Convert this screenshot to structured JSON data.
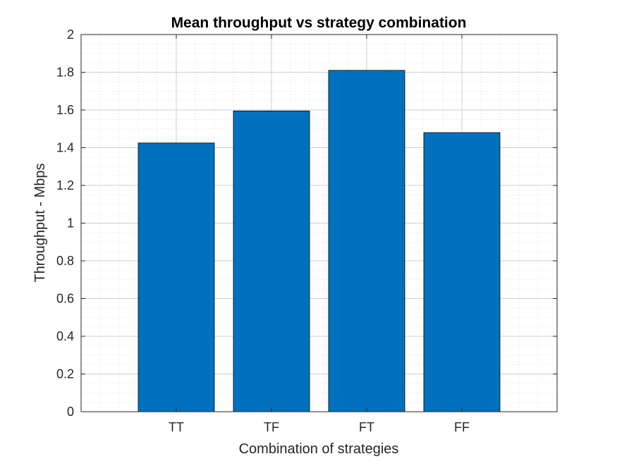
{
  "chart_data": {
    "type": "bar",
    "title": "Mean throughput vs strategy combination",
    "xlabel": "Combination of strategies",
    "ylabel": "Throughput - Mbps",
    "categories": [
      "TT",
      "TF",
      "FT",
      "FF"
    ],
    "values": [
      1.425,
      1.595,
      1.81,
      1.48
    ],
    "ylim": [
      0,
      2
    ],
    "yticks": [
      "0",
      "0.2",
      "0.4",
      "0.6",
      "0.8",
      "1",
      "1.2",
      "1.4",
      "1.6",
      "1.8",
      "2"
    ],
    "grid": true,
    "minor_grid": true,
    "legend": "none",
    "bar_color": "#0072BD"
  }
}
